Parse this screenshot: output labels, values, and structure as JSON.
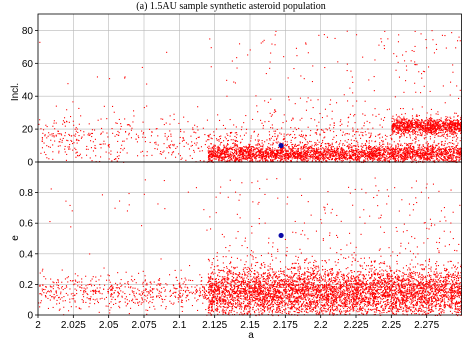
{
  "title": "(a) 1.5AU sample synthetic asteroid population",
  "colors": {
    "points": "#ff0000",
    "highlight": "#0a0aa8",
    "grid": "#b8b8b8",
    "frame": "#000000"
  },
  "chart_data": [
    {
      "type": "scatter",
      "panel": "top",
      "title": "",
      "xlabel": "",
      "ylabel": "Incl.",
      "xlim": [
        2.0,
        2.3
      ],
      "ylim": [
        0,
        90
      ],
      "yticks": [
        0,
        20,
        40,
        60,
        80
      ],
      "ytick_labels": [
        "0",
        "20",
        "40",
        "60",
        "80"
      ],
      "grid": true,
      "highlight_point": {
        "x": 2.172,
        "y": 10
      },
      "series": [
        {
          "description_density": [
            {
              "x_range": [
                2.0,
                2.3
              ],
              "y_center": 13,
              "y_spread": 8,
              "weight": 1
            },
            {
              "x_range": [
                2.12,
                2.3
              ],
              "y_center": 5,
              "y_spread": 3,
              "weight": 3
            },
            {
              "x_range": [
                2.25,
                2.3
              ],
              "y_center": 22,
              "y_spread": 2.5,
              "weight": 1
            }
          ]
        }
      ]
    },
    {
      "type": "scatter",
      "panel": "bottom",
      "title": "",
      "xlabel": "a",
      "ylabel": "e",
      "xlim": [
        2.0,
        2.3
      ],
      "ylim": [
        0,
        1.0
      ],
      "yticks": [
        0,
        0.2,
        0.4,
        0.6,
        0.8
      ],
      "ytick_labels": [
        "0",
        "0.2",
        "0.4",
        "0.6",
        "0.8"
      ],
      "xticks": [
        2.0,
        2.025,
        2.05,
        2.075,
        2.1,
        2.125,
        2.15,
        2.175,
        2.2,
        2.225,
        2.25,
        2.275
      ],
      "xtick_labels": [
        "2",
        "2.025",
        "2.05",
        "2.075",
        "2.1",
        "2.125",
        "2.15",
        "2.175",
        "2.2",
        "2.225",
        "2.25",
        "2.275"
      ],
      "grid": true,
      "highlight_point": {
        "x": 2.172,
        "y": 0.52
      },
      "series": [
        {
          "description_density": [
            {
              "x_range": [
                2.0,
                2.3
              ],
              "y_center": 0.15,
              "y_spread": 0.06,
              "weight": 1
            },
            {
              "x_range": [
                2.12,
                2.3
              ],
              "y_center": 0.15,
              "y_spread": 0.09,
              "weight": 3
            }
          ]
        }
      ]
    }
  ]
}
